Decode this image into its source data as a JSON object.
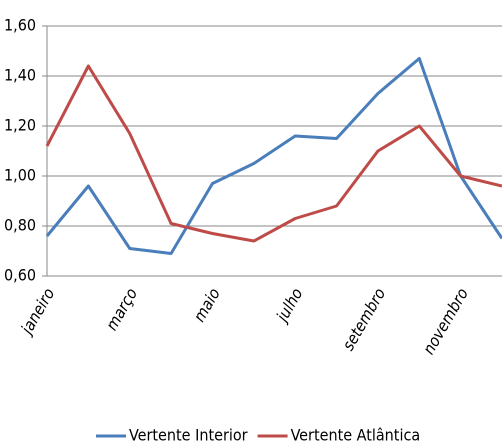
{
  "chart_data": {
    "type": "line",
    "categories": [
      "janeiro",
      null,
      "março",
      null,
      "maio",
      null,
      "julho",
      null,
      "setembro",
      null,
      "novembro",
      null
    ],
    "series": [
      {
        "name": "Vertente Interior",
        "color": "#4a7ebb",
        "values": [
          0.76,
          0.96,
          0.71,
          0.69,
          0.97,
          1.05,
          1.16,
          1.15,
          1.33,
          1.47,
          1.0,
          0.75
        ]
      },
      {
        "name": "Vertente Atlântica",
        "color": "#be4b48",
        "values": [
          1.12,
          1.44,
          1.17,
          0.81,
          0.77,
          0.74,
          0.83,
          0.88,
          1.1,
          1.2,
          1.0,
          0.96
        ]
      }
    ],
    "ylim": [
      0.6,
      1.6
    ],
    "yticks": [
      {
        "value": 0.6,
        "label": "0,60"
      },
      {
        "value": 0.8,
        "label": "0,80"
      },
      {
        "value": 1.0,
        "label": "1,00"
      },
      {
        "value": 1.2,
        "label": "1,20"
      },
      {
        "value": 1.4,
        "label": "1,40"
      },
      {
        "value": 1.6,
        "label": "1,60"
      }
    ],
    "grid": true,
    "legend": "bottom"
  }
}
